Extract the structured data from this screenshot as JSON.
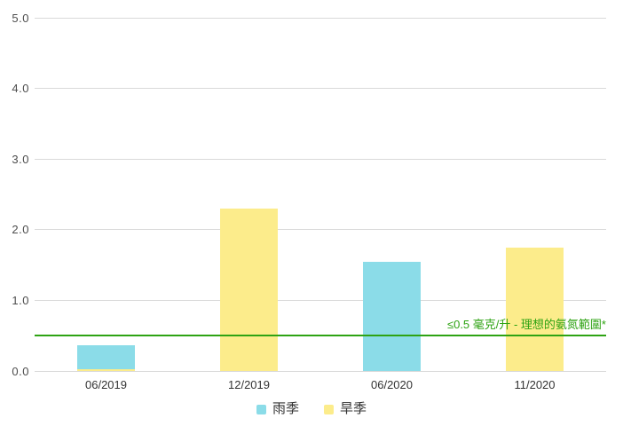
{
  "chart_data": {
    "type": "bar",
    "title": "",
    "xlabel": "",
    "ylabel": "",
    "categories": [
      "06/2019",
      "12/2019",
      "06/2020",
      "11/2020"
    ],
    "series": [
      {
        "name": "雨季",
        "color": "#8bdce8",
        "values": [
          0.37,
          null,
          1.55,
          null
        ]
      },
      {
        "name": "旱季",
        "color": "#fcec8b",
        "values": [
          0.02,
          2.3,
          null,
          1.75
        ]
      }
    ],
    "ylim": [
      0,
      5
    ],
    "ytick_labels": [
      "0.0",
      "1.0",
      "2.0",
      "3.0",
      "4.0",
      "5.0"
    ],
    "grid": true,
    "legend_position": "bottom",
    "threshold_line": {
      "value": 0.5,
      "label": "≤0.5 毫克/升 - 理想的氨氮範圍*",
      "color": "#2ea313"
    }
  },
  "legend": {
    "items": [
      {
        "label": "雨季",
        "color": "#8bdce8"
      },
      {
        "label": "旱季",
        "color": "#fcec8b"
      }
    ]
  },
  "colors": {
    "rainy_season_bar": "#8bdce8",
    "dry_season_bar": "#fcec8b",
    "threshold_green": "#2ea313",
    "gridline": "#d9d9d9",
    "y_axis_label": "#4d4d4d",
    "x_axis_label": "#333333",
    "background": "#ffffff"
  }
}
